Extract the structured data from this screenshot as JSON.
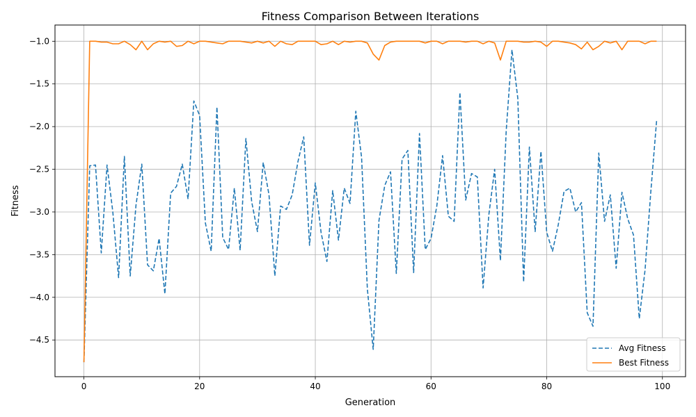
{
  "chart_data": {
    "type": "line",
    "title": "Fitness Comparison Between Iterations",
    "xlabel": "Generation",
    "ylabel": "Fitness",
    "xlim": [
      -5,
      104
    ],
    "ylim": [
      -4.93,
      -0.81
    ],
    "xticks": [
      0,
      20,
      40,
      60,
      80,
      100
    ],
    "yticks": [
      -4.5,
      -4.0,
      -3.5,
      -3.0,
      -2.5,
      -2.0,
      -1.5,
      -1.0
    ],
    "grid": true,
    "legend_position": "lower-right",
    "x": [
      0,
      1,
      2,
      3,
      4,
      5,
      6,
      7,
      8,
      9,
      10,
      11,
      12,
      13,
      14,
      15,
      16,
      17,
      18,
      19,
      20,
      21,
      22,
      23,
      24,
      25,
      26,
      27,
      28,
      29,
      30,
      31,
      32,
      33,
      34,
      35,
      36,
      37,
      38,
      39,
      40,
      41,
      42,
      43,
      44,
      45,
      46,
      47,
      48,
      49,
      50,
      51,
      52,
      53,
      54,
      55,
      56,
      57,
      58,
      59,
      60,
      61,
      62,
      63,
      64,
      65,
      66,
      67,
      68,
      69,
      70,
      71,
      72,
      73,
      74,
      75,
      76,
      77,
      78,
      79,
      80,
      81,
      82,
      83,
      84,
      85,
      86,
      87,
      88,
      89,
      90,
      91,
      92,
      93,
      94,
      95,
      96,
      97,
      98,
      99
    ],
    "series": [
      {
        "name": "Avg Fitness",
        "color": "#1f77b4",
        "dash": "dashed",
        "values": [
          -4.76,
          -2.46,
          -2.45,
          -3.48,
          -2.45,
          -3.0,
          -3.77,
          -2.35,
          -3.75,
          -2.92,
          -2.44,
          -3.62,
          -3.69,
          -3.31,
          -3.96,
          -2.78,
          -2.7,
          -2.44,
          -2.85,
          -1.7,
          -1.87,
          -3.13,
          -3.46,
          -1.77,
          -3.3,
          -3.44,
          -2.72,
          -3.45,
          -2.14,
          -2.88,
          -3.23,
          -2.42,
          -2.8,
          -3.75,
          -2.93,
          -2.97,
          -2.8,
          -2.41,
          -2.12,
          -3.39,
          -2.66,
          -3.24,
          -3.58,
          -2.75,
          -3.33,
          -2.72,
          -2.9,
          -1.82,
          -2.36,
          -3.9,
          -4.61,
          -3.1,
          -2.69,
          -2.53,
          -3.72,
          -2.38,
          -2.28,
          -3.71,
          -2.08,
          -3.44,
          -3.31,
          -2.93,
          -2.34,
          -3.05,
          -3.11,
          -1.6,
          -2.86,
          -2.55,
          -2.59,
          -3.89,
          -3.03,
          -2.5,
          -3.57,
          -2.05,
          -1.1,
          -1.67,
          -3.82,
          -2.24,
          -3.23,
          -2.29,
          -3.24,
          -3.46,
          -3.15,
          -2.76,
          -2.72,
          -3.0,
          -2.89,
          -4.18,
          -4.34,
          -2.31,
          -3.11,
          -2.8,
          -3.66,
          -2.77,
          -3.08,
          -3.27,
          -4.25,
          -3.68,
          -2.76,
          -1.93
        ]
      },
      {
        "name": "Best Fitness",
        "color": "#ff7f0e",
        "dash": "solid",
        "values": [
          -4.76,
          -1.0,
          -1.0,
          -1.01,
          -1.01,
          -1.03,
          -1.03,
          -1.0,
          -1.04,
          -1.1,
          -1.0,
          -1.1,
          -1.03,
          -1.0,
          -1.01,
          -1.0,
          -1.06,
          -1.05,
          -1.0,
          -1.03,
          -1.0,
          -1.0,
          -1.01,
          -1.02,
          -1.03,
          -1.0,
          -1.0,
          -1.0,
          -1.01,
          -1.02,
          -1.0,
          -1.02,
          -1.0,
          -1.06,
          -1.0,
          -1.03,
          -1.04,
          -1.0,
          -1.0,
          -1.0,
          -1.0,
          -1.04,
          -1.03,
          -1.0,
          -1.04,
          -1.0,
          -1.01,
          -1.0,
          -1.0,
          -1.02,
          -1.15,
          -1.22,
          -1.05,
          -1.01,
          -1.0,
          -1.0,
          -1.0,
          -1.0,
          -1.0,
          -1.02,
          -1.0,
          -1.0,
          -1.03,
          -1.0,
          -1.0,
          -1.0,
          -1.01,
          -1.0,
          -1.0,
          -1.03,
          -1.0,
          -1.02,
          -1.22,
          -1.0,
          -1.0,
          -1.0,
          -1.01,
          -1.01,
          -1.0,
          -1.01,
          -1.06,
          -1.0,
          -1.0,
          -1.01,
          -1.02,
          -1.04,
          -1.09,
          -1.01,
          -1.1,
          -1.06,
          -1.0,
          -1.02,
          -1.0,
          -1.1,
          -1.0,
          -1.0,
          -1.0,
          -1.03,
          -1.0,
          -1.0
        ]
      }
    ]
  }
}
